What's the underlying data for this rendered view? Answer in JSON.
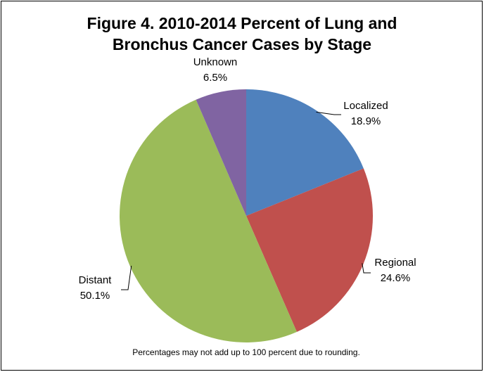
{
  "chart_data": {
    "type": "pie",
    "title": "Figure 4. 2010-2014 Percent of Lung and Bronchus Cancer Cases by Stage",
    "categories": [
      "Localized",
      "Regional",
      "Distant",
      "Unknown"
    ],
    "values": [
      18.9,
      24.6,
      50.1,
      6.5
    ],
    "value_labels": [
      "18.9%",
      "24.6%",
      "50.1%",
      "6.5%"
    ],
    "colors": [
      "#4f81bd",
      "#c0504d",
      "#9bbb59",
      "#8064a2"
    ],
    "note": "Percentages may not add up to 100 percent due to rounding."
  }
}
